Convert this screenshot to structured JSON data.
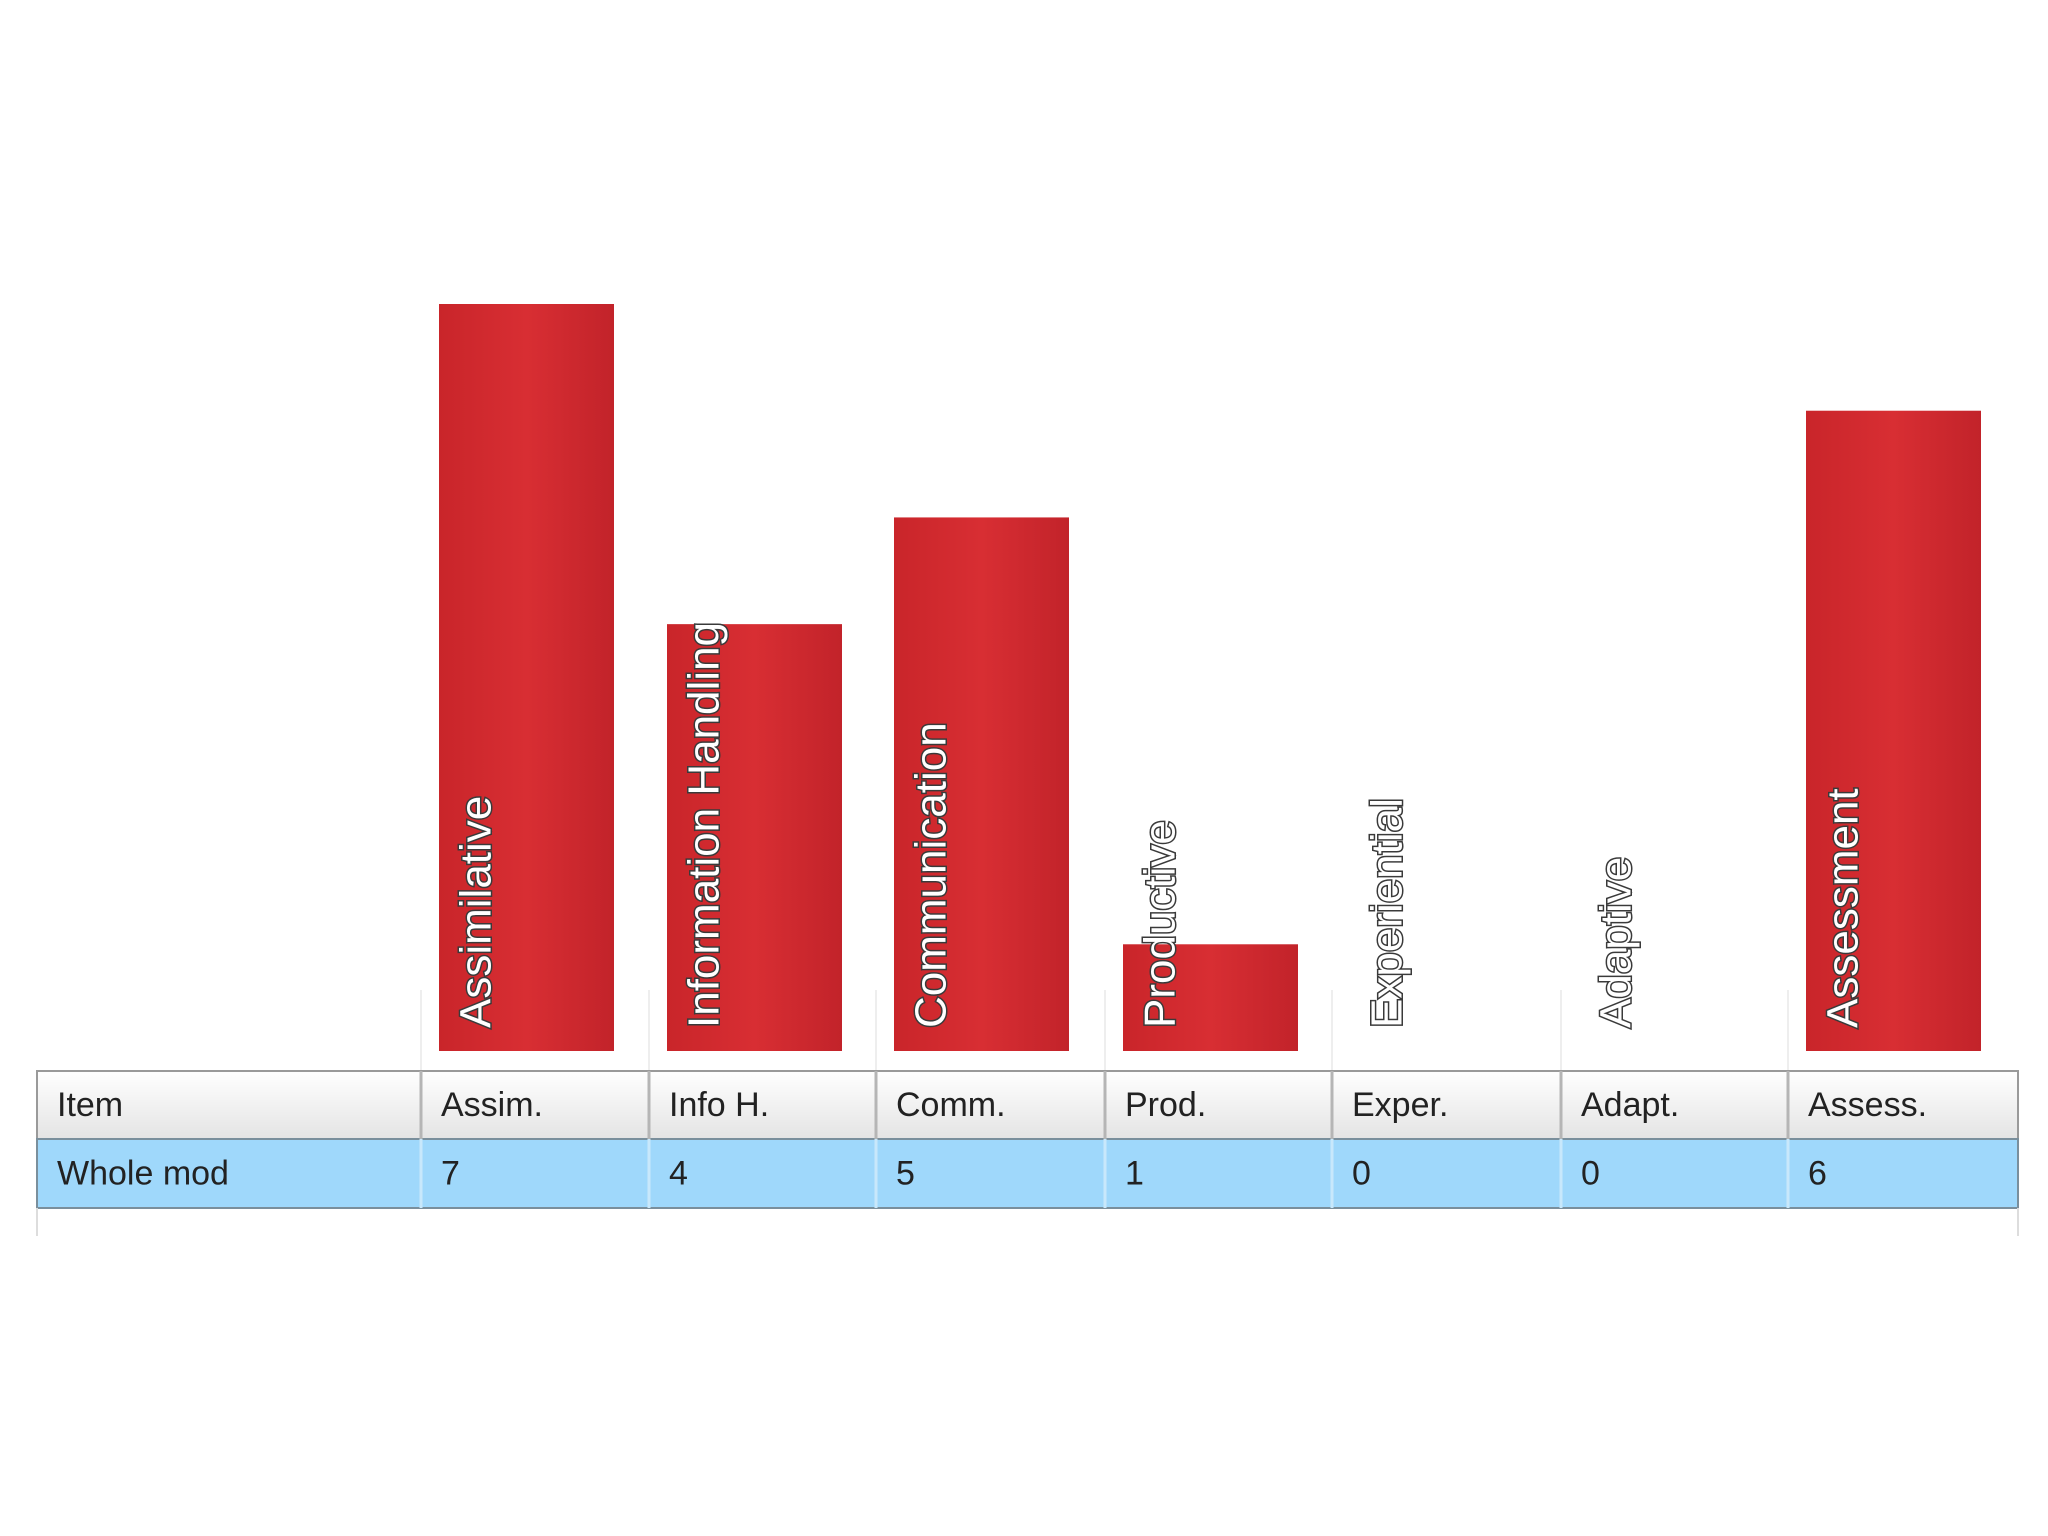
{
  "chart_data": {
    "type": "bar",
    "categories": [
      "Assimilative",
      "Information Handling",
      "Communication",
      "Productive",
      "Experiential",
      "Adaptive",
      "Assessment"
    ],
    "values": [
      7,
      4,
      5,
      1,
      0,
      0,
      6
    ],
    "color": "#d42b30"
  },
  "table": {
    "header": [
      "Item",
      "Assim.",
      "Info H.",
      "Comm.",
      "Prod.",
      "Exper.",
      "Adapt.",
      "Assess."
    ],
    "row_label": "Whole mod"
  }
}
